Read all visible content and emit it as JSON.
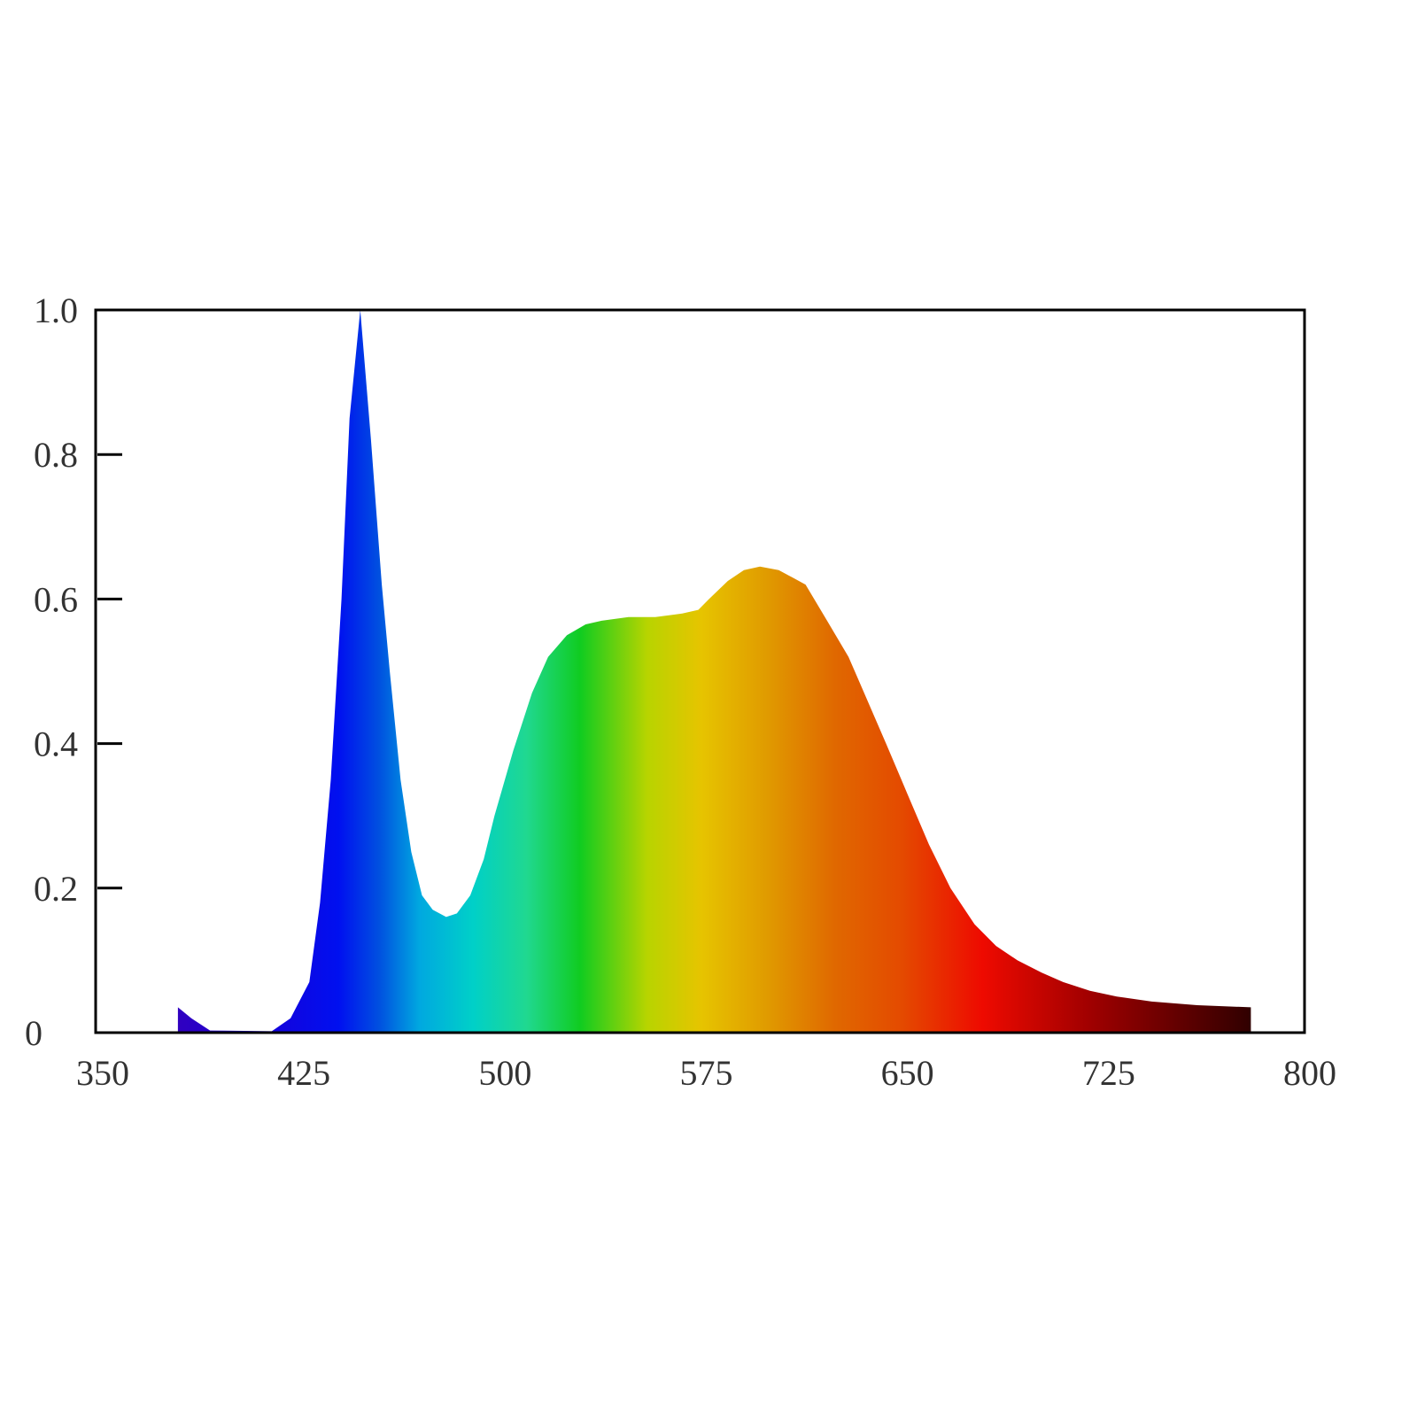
{
  "chart_data": {
    "type": "area",
    "title": "",
    "xlabel": "",
    "ylabel": "",
    "xlim": [
      350,
      800
    ],
    "ylim": [
      0,
      1.0
    ],
    "grid": false,
    "x_ticks": [
      "350",
      "425",
      "500",
      "575",
      "650",
      "725",
      "800"
    ],
    "x_tick_values": [
      350,
      425,
      500,
      575,
      650,
      725,
      800
    ],
    "y_ticks": [
      "0",
      "0.2",
      "0.4",
      "0.6",
      "0.8",
      "1.0"
    ],
    "y_tick_values": [
      0,
      0.2,
      0.4,
      0.6,
      0.8,
      1.0
    ],
    "fill": "wavelength-colored spectrum gradient",
    "x": [
      380,
      385,
      392,
      415,
      422,
      429,
      433,
      437,
      441,
      444,
      448,
      452,
      456,
      459,
      463,
      467,
      471,
      475,
      480,
      484,
      489,
      494,
      498,
      505,
      512,
      518,
      525,
      532,
      538,
      548,
      558,
      568,
      574,
      578,
      585,
      591,
      597,
      604,
      609,
      614,
      622,
      630,
      637,
      644,
      652,
      660,
      668,
      677,
      685,
      693,
      702,
      710,
      720,
      730,
      743,
      760,
      780
    ],
    "y": [
      0.035,
      0.02,
      0.003,
      0.002,
      0.02,
      0.07,
      0.18,
      0.35,
      0.6,
      0.85,
      1.0,
      0.82,
      0.62,
      0.5,
      0.35,
      0.25,
      0.19,
      0.17,
      0.16,
      0.165,
      0.19,
      0.24,
      0.3,
      0.39,
      0.47,
      0.52,
      0.55,
      0.565,
      0.57,
      0.575,
      0.575,
      0.58,
      0.585,
      0.6,
      0.625,
      0.64,
      0.645,
      0.64,
      0.63,
      0.62,
      0.57,
      0.52,
      0.46,
      0.4,
      0.33,
      0.26,
      0.2,
      0.15,
      0.12,
      0.1,
      0.083,
      0.07,
      0.058,
      0.05,
      0.043,
      0.038,
      0.035
    ],
    "gradient_colors": [
      {
        "wl": 380,
        "color": "#3000c0"
      },
      {
        "wl": 410,
        "color": "#1800d8"
      },
      {
        "wl": 440,
        "color": "#0010f0"
      },
      {
        "wl": 455,
        "color": "#0050e0"
      },
      {
        "wl": 470,
        "color": "#00a8e0"
      },
      {
        "wl": 490,
        "color": "#00d0c8"
      },
      {
        "wl": 510,
        "color": "#20d890"
      },
      {
        "wl": 530,
        "color": "#10cc20"
      },
      {
        "wl": 555,
        "color": "#b8d400"
      },
      {
        "wl": 575,
        "color": "#e6c400"
      },
      {
        "wl": 600,
        "color": "#e09a00"
      },
      {
        "wl": 625,
        "color": "#e06800"
      },
      {
        "wl": 650,
        "color": "#e44a00"
      },
      {
        "wl": 680,
        "color": "#ee0a00"
      },
      {
        "wl": 720,
        "color": "#a00000"
      },
      {
        "wl": 780,
        "color": "#300000"
      }
    ],
    "axis_color": "#000000"
  }
}
